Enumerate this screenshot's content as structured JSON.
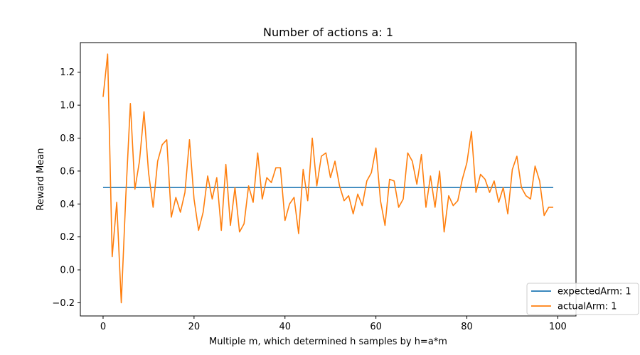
{
  "chart_data": {
    "type": "line",
    "title": "Number of actions a: 1",
    "xlabel": "Multiple m, which determined h samples by h=a*m",
    "ylabel": "Reward Mean",
    "xlim": [
      -5,
      104
    ],
    "ylim": [
      -0.28,
      1.38
    ],
    "xticks": [
      0,
      20,
      40,
      60,
      80,
      100
    ],
    "yticks": [
      -0.2,
      0.0,
      0.2,
      0.4,
      0.6,
      0.8,
      1.0,
      1.2
    ],
    "xtick_labels": [
      "0",
      "20",
      "40",
      "60",
      "80",
      "100"
    ],
    "ytick_labels": [
      "−0.2",
      "0.0",
      "0.2",
      "0.4",
      "0.6",
      "0.8",
      "1.0",
      "1.2"
    ],
    "grid": false,
    "legend_position": "lower-right",
    "series": [
      {
        "name": "expectedArm: 1",
        "color": "#1f77b4",
        "x": [
          0,
          99
        ],
        "y": [
          0.5,
          0.5
        ]
      },
      {
        "name": "actualArm: 1",
        "color": "#ff7f0e",
        "x": [
          0,
          1,
          2,
          3,
          4,
          5,
          6,
          7,
          8,
          9,
          10,
          11,
          12,
          13,
          14,
          15,
          16,
          17,
          18,
          19,
          20,
          21,
          22,
          23,
          24,
          25,
          26,
          27,
          28,
          29,
          30,
          31,
          32,
          33,
          34,
          35,
          36,
          37,
          38,
          39,
          40,
          41,
          42,
          43,
          44,
          45,
          46,
          47,
          48,
          49,
          50,
          51,
          52,
          53,
          54,
          55,
          56,
          57,
          58,
          59,
          60,
          61,
          62,
          63,
          64,
          65,
          66,
          67,
          68,
          69,
          70,
          71,
          72,
          73,
          74,
          75,
          76,
          77,
          78,
          79,
          80,
          81,
          82,
          83,
          84,
          85,
          86,
          87,
          88,
          89,
          90,
          91,
          92,
          93,
          94,
          95,
          96,
          97,
          98,
          99
        ],
        "y": [
          1.05,
          1.31,
          0.08,
          0.41,
          -0.2,
          0.45,
          1.01,
          0.49,
          0.66,
          0.96,
          0.59,
          0.38,
          0.66,
          0.76,
          0.79,
          0.32,
          0.44,
          0.35,
          0.47,
          0.79,
          0.43,
          0.24,
          0.35,
          0.57,
          0.43,
          0.56,
          0.24,
          0.64,
          0.27,
          0.5,
          0.23,
          0.28,
          0.51,
          0.41,
          0.71,
          0.43,
          0.56,
          0.53,
          0.62,
          0.62,
          0.3,
          0.4,
          0.44,
          0.22,
          0.61,
          0.42,
          0.8,
          0.51,
          0.69,
          0.71,
          0.56,
          0.66,
          0.51,
          0.42,
          0.45,
          0.34,
          0.46,
          0.39,
          0.54,
          0.59,
          0.74,
          0.42,
          0.27,
          0.55,
          0.54,
          0.38,
          0.43,
          0.71,
          0.66,
          0.52,
          0.7,
          0.38,
          0.57,
          0.38,
          0.6,
          0.23,
          0.45,
          0.39,
          0.42,
          0.55,
          0.65,
          0.84,
          0.47,
          0.58,
          0.55,
          0.47,
          0.54,
          0.41,
          0.5,
          0.34,
          0.61,
          0.69,
          0.5,
          0.45,
          0.43,
          0.63,
          0.54,
          0.33,
          0.38,
          0.38
        ]
      }
    ]
  }
}
